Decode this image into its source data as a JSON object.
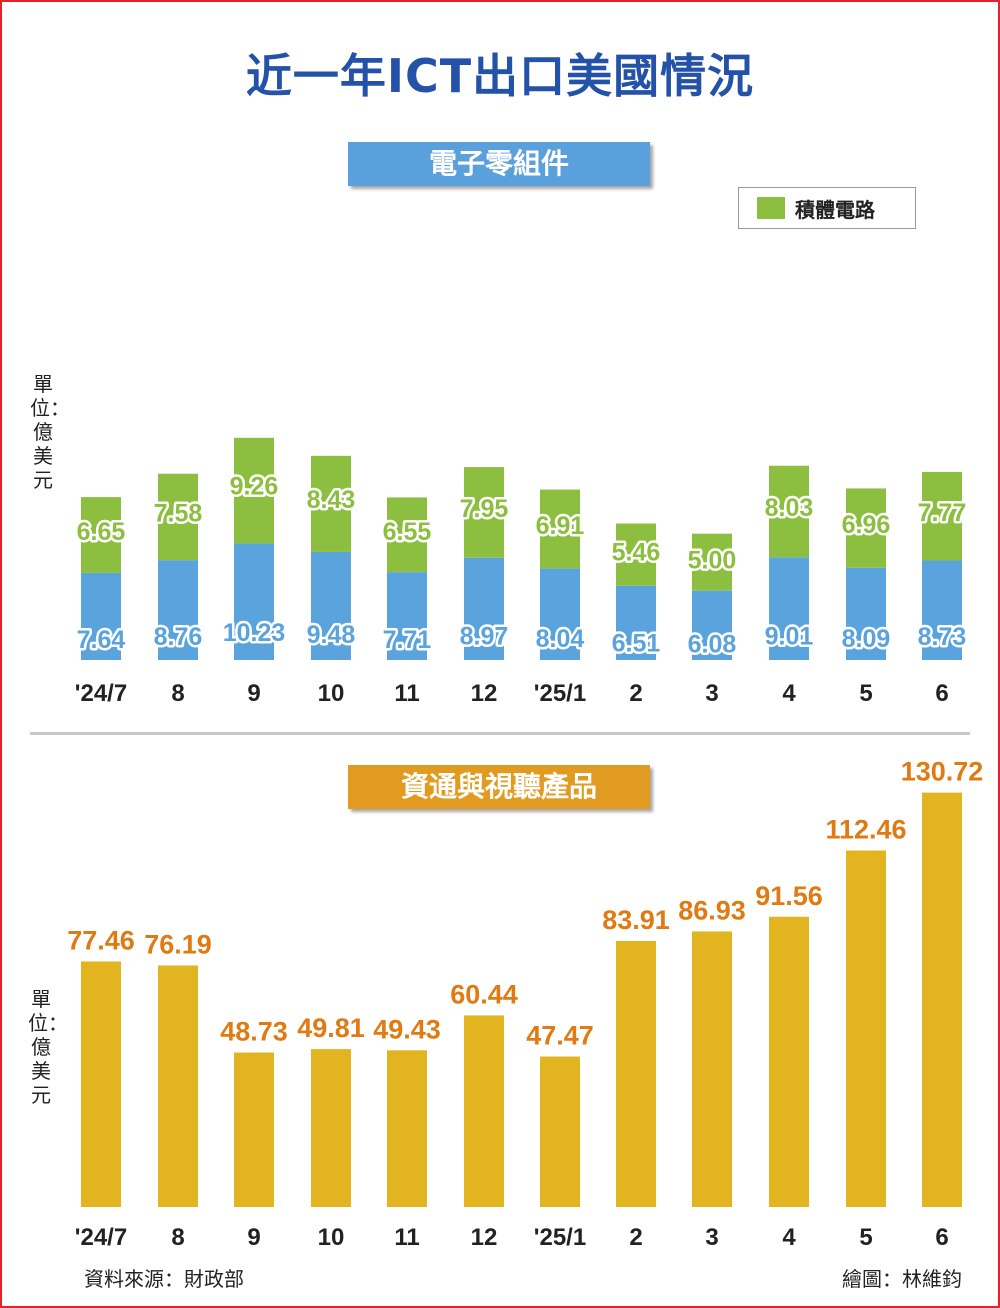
{
  "title": "近一年ICT出口美國情況",
  "top_section": {
    "banner": "電子零組件",
    "legend_label": "積體電路",
    "unit": "單位：億美元"
  },
  "bottom_section": {
    "banner": "資通與視聽產品",
    "unit": "單位：億美元"
  },
  "footer": {
    "source": "資料來源：財政部",
    "credit": "繪圖：林維鈞"
  },
  "colors": {
    "title": "#2452a8",
    "stack_blue": "#5ba3dd",
    "stack_green": "#8cbf3f",
    "bar_gold": "#e2b520",
    "label_orange": "#e07a12",
    "label_outline": "#ffffff"
  },
  "chart_data": [
    {
      "type": "bar",
      "stacked": true,
      "categories": [
        "'24/7",
        "8",
        "9",
        "10",
        "11",
        "12",
        "'25/1",
        "2",
        "3",
        "4",
        "5",
        "6"
      ],
      "series": [
        {
          "values": [
            7.64,
            8.76,
            10.23,
            9.48,
            7.71,
            8.97,
            8.04,
            6.51,
            6.08,
            9.01,
            8.09,
            8.73
          ]
        },
        {
          "name": "積體電路",
          "values": [
            6.65,
            7.58,
            9.26,
            8.43,
            6.55,
            7.95,
            6.91,
            5.46,
            5.0,
            8.03,
            6.96,
            7.77
          ]
        }
      ],
      "value_labels": {
        "blue": [
          "7.64",
          "8.76",
          "10.23",
          "9.48",
          "7.71",
          "8.97",
          "8.04",
          "6.51",
          "6.08",
          "9.01",
          "8.09",
          "8.73"
        ],
        "green": [
          "6.65",
          "7.58",
          "9.26",
          "8.43",
          "6.55",
          "7.95",
          "6.91",
          "5.46",
          "5.00",
          "8.03",
          "6.96",
          "7.77"
        ]
      },
      "legend": "top-right",
      "grid": false
    },
    {
      "type": "bar",
      "categories": [
        "'24/7",
        "8",
        "9",
        "10",
        "11",
        "12",
        "'25/1",
        "2",
        "3",
        "4",
        "5",
        "6"
      ],
      "values": [
        77.46,
        76.19,
        48.73,
        49.81,
        49.43,
        60.44,
        47.47,
        83.91,
        86.93,
        91.56,
        112.46,
        130.72
      ],
      "value_labels": [
        "77.46",
        "76.19",
        "48.73",
        "49.81",
        "49.43",
        "60.44",
        "47.47",
        "83.91",
        "86.93",
        "91.56",
        "112.46",
        "130.72"
      ],
      "grid": false
    }
  ]
}
